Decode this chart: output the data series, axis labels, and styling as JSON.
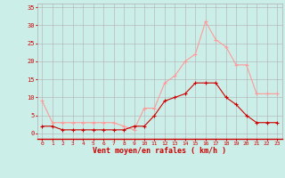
{
  "x": [
    0,
    1,
    2,
    3,
    4,
    5,
    6,
    7,
    8,
    9,
    10,
    11,
    12,
    13,
    14,
    15,
    16,
    17,
    18,
    19,
    20,
    21,
    22,
    23
  ],
  "vent_moyen": [
    2,
    2,
    1,
    1,
    1,
    1,
    1,
    1,
    1,
    2,
    2,
    5,
    9,
    10,
    11,
    14,
    14,
    14,
    10,
    8,
    5,
    3,
    3,
    3
  ],
  "en_rafales": [
    9,
    3,
    3,
    3,
    3,
    3,
    3,
    3,
    2,
    1,
    7,
    7,
    14,
    16,
    20,
    22,
    31,
    26,
    24,
    19,
    19,
    11,
    11,
    11
  ],
  "color_moyen": "#cc0000",
  "color_rafales": "#ff9999",
  "bg_color": "#cceee8",
  "grid_color": "#b0b0b0",
  "xlabel": "Vent moyen/en rafales ( km/h )",
  "ylabel_ticks": [
    0,
    5,
    10,
    15,
    20,
    25,
    30,
    35
  ],
  "ylim": [
    -1.5,
    36
  ],
  "xlim": [
    -0.5,
    23.5
  ],
  "xlabel_color": "#cc0000",
  "tick_color": "#cc0000",
  "marker_moyen": "+",
  "marker_rafales": "+"
}
